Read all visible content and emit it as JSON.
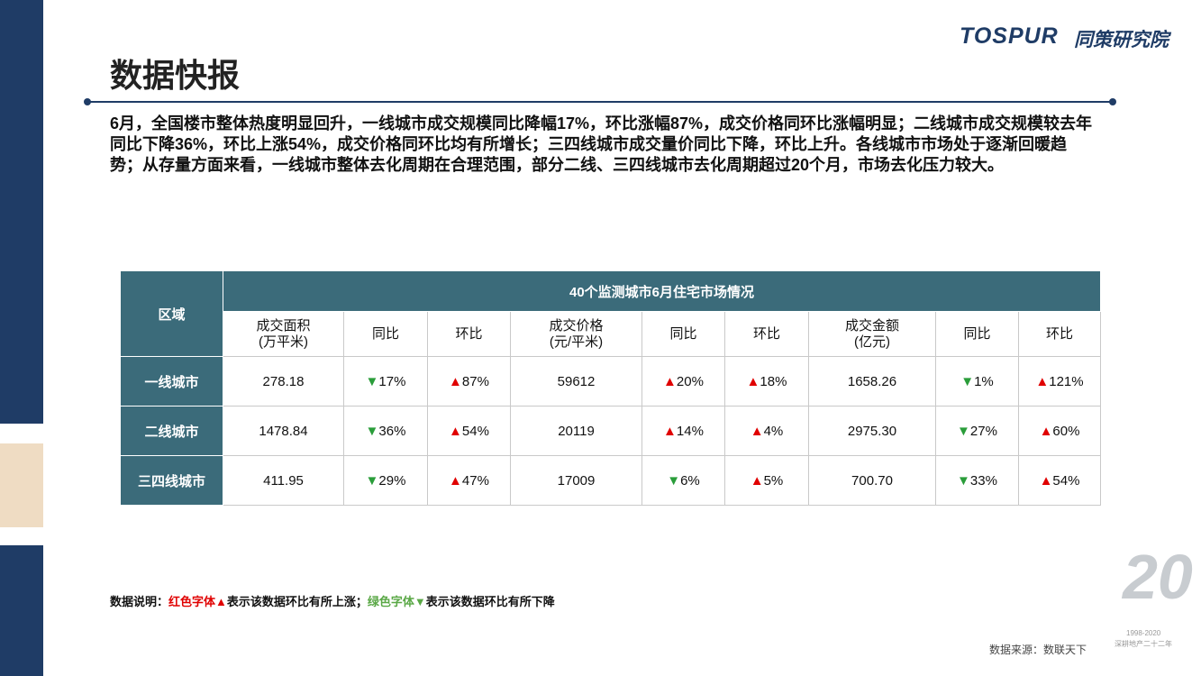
{
  "header": {
    "title": "数据快报",
    "logo": "TOSPUR",
    "logo_cn": "同策研究院"
  },
  "summary": "6月，全国楼市整体热度明显回升，一线城市成交规模同比降幅17%，环比涨幅87%，成交价格同环比涨幅明显；二线城市成交规模较去年同比下降36%，环比上涨54%，成交价格同环比均有所增长；三四线城市成交量价同比下降，环比上升。各线城市市场处于逐渐回暖趋势；从存量方面来看，一线城市整体去化周期在合理范围，部分二线、三四线城市去化周期超过20个月，市场去化压力较大。",
  "table": {
    "title": "40个监测城市6月住宅市场情况",
    "region_header": "区域",
    "columns": [
      "成交面积\n(万平米)",
      "同比",
      "环比",
      "成交价格\n(元/平米)",
      "同比",
      "环比",
      "成交金额\n(亿元)",
      "同比",
      "环比"
    ],
    "rows": [
      {
        "region": "一线城市",
        "cells": [
          "278.18",
          {
            "dir": "▼",
            "value": "17%"
          },
          {
            "dir": "▲",
            "value": "87%"
          },
          "59612",
          {
            "dir": "▲",
            "value": "20%"
          },
          {
            "dir": "▲",
            "value": "18%"
          },
          "1658.26",
          {
            "dir": "▼",
            "value": "1%"
          },
          {
            "dir": "▲",
            "value": "121%"
          }
        ]
      },
      {
        "region": "二线城市",
        "cells": [
          "1478.84",
          {
            "dir": "▼",
            "value": "36%"
          },
          {
            "dir": "▲",
            "value": "54%"
          },
          "20119",
          {
            "dir": "▲",
            "value": "14%"
          },
          {
            "dir": "▲",
            "value": "4%"
          },
          "2975.30",
          {
            "dir": "▼",
            "value": "27%"
          },
          {
            "dir": "▲",
            "value": "60%"
          }
        ]
      },
      {
        "region": "三四线城市",
        "cells": [
          "411.95",
          {
            "dir": "▼",
            "value": "29%"
          },
          {
            "dir": "▲",
            "value": "47%"
          },
          "17009",
          {
            "dir": "▼",
            "value": "6%"
          },
          {
            "dir": "▲",
            "value": "5%"
          },
          "700.70",
          {
            "dir": "▼",
            "value": "33%"
          },
          {
            "dir": "▲",
            "value": "54%"
          }
        ]
      }
    ]
  },
  "note": {
    "label": "数据说明：",
    "red": "红色字体▲",
    "red_text": "表示该数据环比有所上涨；",
    "green": "绿色字体▼",
    "green_text": "表示该数据环比有所下降"
  },
  "source": "数据来源：数联天下",
  "badge": {
    "number": "20",
    "years": "1998-2020",
    "slogan": "深耕地产二十二年"
  }
}
